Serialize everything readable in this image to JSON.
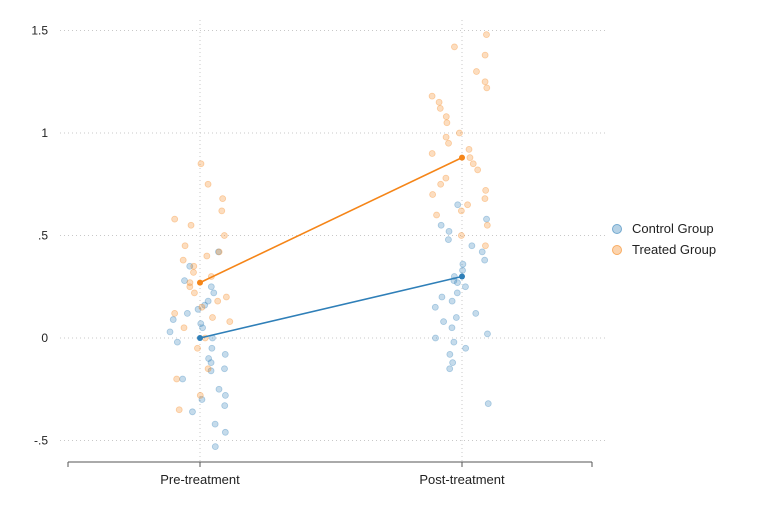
{
  "chart_data": {
    "type": "scatter",
    "categories": [
      "Pre-treatment",
      "Post-treatment"
    ],
    "y_ticks": [
      -0.5,
      0,
      0.5,
      1,
      1.5
    ],
    "y_tick_labels": [
      "-.5",
      "0",
      ".5",
      "1",
      "1.5"
    ],
    "ylim": [
      -0.55,
      1.5
    ],
    "grid": true,
    "legend_position": "right",
    "title": "",
    "xlabel": "",
    "ylabel": "",
    "series": [
      {
        "name": "Control Group",
        "color": "#2f7fb8",
        "means": [
          0.0,
          0.3
        ],
        "points": [
          {
            "x": 0,
            "y": 0.03
          },
          {
            "x": 0,
            "y": -0.08
          },
          {
            "x": 0,
            "y": 0.12
          },
          {
            "x": 0,
            "y": -0.2
          },
          {
            "x": 0,
            "y": 0.22
          },
          {
            "x": 0,
            "y": -0.3
          },
          {
            "x": 0,
            "y": 0.35
          },
          {
            "x": 0,
            "y": -0.42
          },
          {
            "x": 0,
            "y": -0.53
          },
          {
            "x": 0,
            "y": 0.05
          },
          {
            "x": 0,
            "y": -0.12
          },
          {
            "x": 0,
            "y": 0.18
          },
          {
            "x": 0,
            "y": -0.25
          },
          {
            "x": 0,
            "y": 0.28
          },
          {
            "x": 0,
            "y": -0.36
          },
          {
            "x": 0,
            "y": 0.0
          },
          {
            "x": 0,
            "y": -0.05
          },
          {
            "x": 0,
            "y": 0.09
          },
          {
            "x": 0,
            "y": -0.16
          },
          {
            "x": 0,
            "y": 0.14
          },
          {
            "x": 0,
            "y": -0.46
          },
          {
            "x": 0,
            "y": 0.42
          },
          {
            "x": 0,
            "y": -0.02
          },
          {
            "x": 0,
            "y": 0.07
          },
          {
            "x": 0,
            "y": -0.28
          },
          {
            "x": 0,
            "y": 0.25
          },
          {
            "x": 0,
            "y": -0.1
          },
          {
            "x": 0,
            "y": 0.16
          },
          {
            "x": 0,
            "y": -0.33
          },
          {
            "x": 0,
            "y": -0.15
          },
          {
            "x": 1,
            "y": 0.3
          },
          {
            "x": 1,
            "y": 0.18
          },
          {
            "x": 1,
            "y": 0.42
          },
          {
            "x": 1,
            "y": 0.05
          },
          {
            "x": 1,
            "y": 0.55
          },
          {
            "x": 1,
            "y": -0.08
          },
          {
            "x": 1,
            "y": 0.65
          },
          {
            "x": 1,
            "y": -0.15
          },
          {
            "x": 1,
            "y": -0.32
          },
          {
            "x": 1,
            "y": 0.25
          },
          {
            "x": 1,
            "y": 0.12
          },
          {
            "x": 1,
            "y": 0.38
          },
          {
            "x": 1,
            "y": 0.0
          },
          {
            "x": 1,
            "y": 0.48
          },
          {
            "x": 1,
            "y": -0.05
          },
          {
            "x": 1,
            "y": 0.33
          },
          {
            "x": 1,
            "y": 0.22
          },
          {
            "x": 1,
            "y": 0.08
          },
          {
            "x": 1,
            "y": 0.58
          },
          {
            "x": 1,
            "y": 0.15
          },
          {
            "x": 1,
            "y": 0.28
          },
          {
            "x": 1,
            "y": -0.12
          },
          {
            "x": 1,
            "y": 0.45
          },
          {
            "x": 1,
            "y": 0.02
          },
          {
            "x": 1,
            "y": 0.36
          },
          {
            "x": 1,
            "y": 0.2
          },
          {
            "x": 1,
            "y": 0.1
          },
          {
            "x": 1,
            "y": 0.52
          },
          {
            "x": 1,
            "y": -0.02
          },
          {
            "x": 1,
            "y": 0.27
          }
        ]
      },
      {
        "name": "Treated Group",
        "color": "#f58518",
        "means": [
          0.27,
          0.88
        ],
        "points": [
          {
            "x": 0,
            "y": 0.27
          },
          {
            "x": 0,
            "y": 0.15
          },
          {
            "x": 0,
            "y": 0.4
          },
          {
            "x": 0,
            "y": 0.05
          },
          {
            "x": 0,
            "y": 0.5
          },
          {
            "x": 0,
            "y": -0.05
          },
          {
            "x": 0,
            "y": 0.62
          },
          {
            "x": 0,
            "y": -0.15
          },
          {
            "x": 0,
            "y": 0.75
          },
          {
            "x": 0,
            "y": 0.85
          },
          {
            "x": 0,
            "y": -0.28
          },
          {
            "x": 0,
            "y": 0.3
          },
          {
            "x": 0,
            "y": 0.2
          },
          {
            "x": 0,
            "y": 0.35
          },
          {
            "x": 0,
            "y": 0.1
          },
          {
            "x": 0,
            "y": 0.45
          },
          {
            "x": 0,
            "y": 0.0
          },
          {
            "x": 0,
            "y": 0.55
          },
          {
            "x": 0,
            "y": 0.25
          },
          {
            "x": 0,
            "y": 0.32
          },
          {
            "x": 0,
            "y": 0.18
          },
          {
            "x": 0,
            "y": 0.68
          },
          {
            "x": 0,
            "y": -0.2
          },
          {
            "x": 0,
            "y": 0.42
          },
          {
            "x": 0,
            "y": 0.12
          },
          {
            "x": 0,
            "y": 0.22
          },
          {
            "x": 0,
            "y": -0.35
          },
          {
            "x": 0,
            "y": 0.58
          },
          {
            "x": 0,
            "y": 0.08
          },
          {
            "x": 0,
            "y": 0.38
          },
          {
            "x": 1,
            "y": 0.88
          },
          {
            "x": 1,
            "y": 0.75
          },
          {
            "x": 1,
            "y": 1.0
          },
          {
            "x": 1,
            "y": 0.65
          },
          {
            "x": 1,
            "y": 1.12
          },
          {
            "x": 1,
            "y": 0.55
          },
          {
            "x": 1,
            "y": 1.25
          },
          {
            "x": 1,
            "y": 0.45
          },
          {
            "x": 1,
            "y": 1.38
          },
          {
            "x": 1,
            "y": 1.48
          },
          {
            "x": 1,
            "y": 0.82
          },
          {
            "x": 1,
            "y": 0.95
          },
          {
            "x": 1,
            "y": 0.7
          },
          {
            "x": 1,
            "y": 1.05
          },
          {
            "x": 1,
            "y": 0.6
          },
          {
            "x": 1,
            "y": 1.18
          },
          {
            "x": 1,
            "y": 0.92
          },
          {
            "x": 1,
            "y": 0.78
          },
          {
            "x": 1,
            "y": 1.3
          },
          {
            "x": 1,
            "y": 0.5
          },
          {
            "x": 1,
            "y": 0.85
          },
          {
            "x": 1,
            "y": 1.08
          },
          {
            "x": 1,
            "y": 0.68
          },
          {
            "x": 1,
            "y": 0.98
          },
          {
            "x": 1,
            "y": 1.42
          },
          {
            "x": 1,
            "y": 0.72
          },
          {
            "x": 1,
            "y": 1.15
          },
          {
            "x": 1,
            "y": 0.62
          },
          {
            "x": 1,
            "y": 0.9
          },
          {
            "x": 1,
            "y": 1.22
          }
        ]
      }
    ]
  }
}
